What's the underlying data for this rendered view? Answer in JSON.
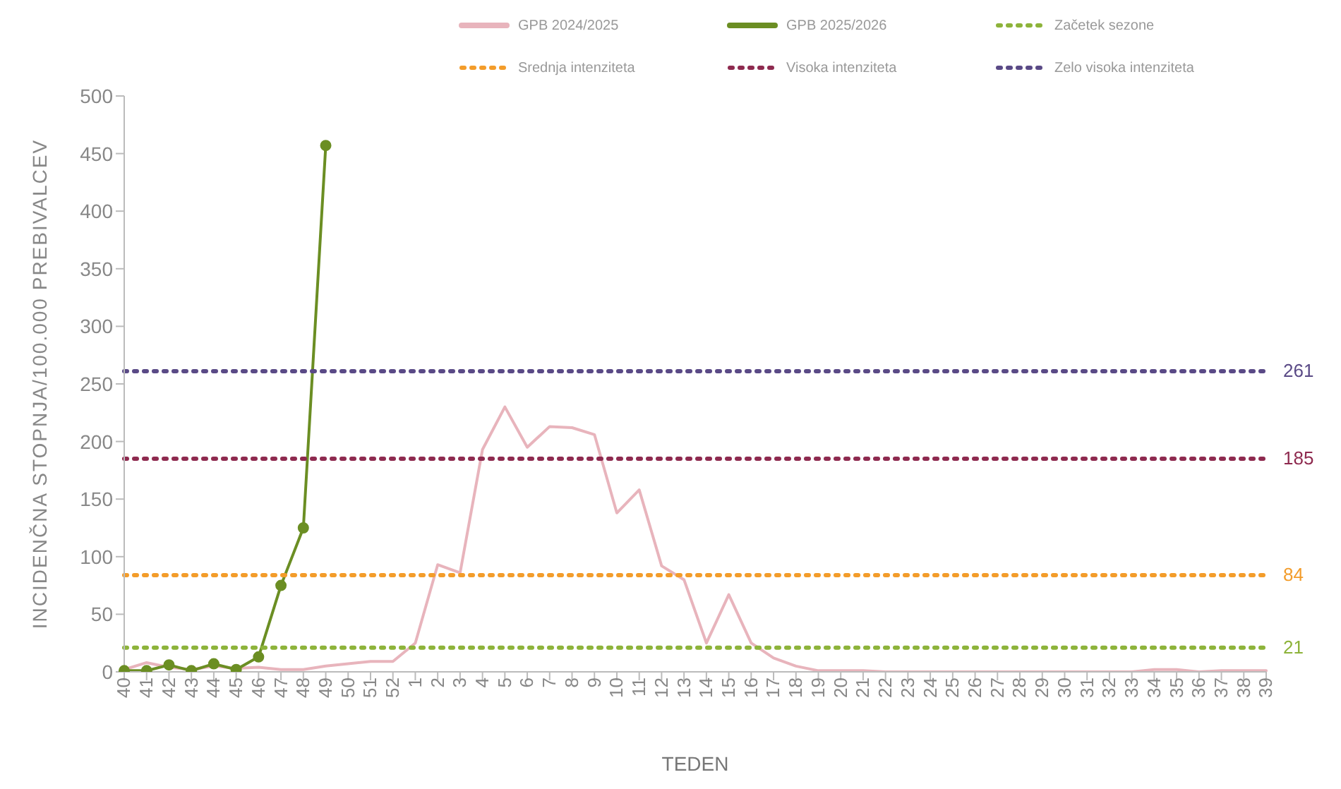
{
  "chart_data": {
    "type": "line",
    "xlabel": "TEDEN",
    "ylabel": "INCIDENČNA STOPNJA/100.000 PREBIVALCEV",
    "categories": [
      "40",
      "41",
      "42",
      "43",
      "44",
      "45",
      "46",
      "47",
      "48",
      "49",
      "50",
      "51",
      "52",
      "1",
      "2",
      "3",
      "4",
      "5",
      "6",
      "7",
      "8",
      "9",
      "10",
      "11",
      "12",
      "13",
      "14",
      "15",
      "16",
      "17",
      "18",
      "19",
      "20",
      "21",
      "22",
      "23",
      "24",
      "25",
      "26",
      "27",
      "28",
      "29",
      "30",
      "31",
      "32",
      "33",
      "34",
      "35",
      "36",
      "37",
      "38",
      "39"
    ],
    "ylim": [
      0,
      500
    ],
    "yticks": [
      0,
      50,
      100,
      150,
      200,
      250,
      300,
      350,
      400,
      450,
      500
    ],
    "grid": false,
    "legend": "top",
    "series": [
      {
        "name": "GPB 2024/2025",
        "color": "#e8b4bc",
        "marker": "none",
        "line_style": "solid",
        "values": [
          2,
          8,
          4,
          2,
          5,
          3,
          4,
          2,
          2,
          5,
          7,
          9,
          9,
          25,
          93,
          86,
          193,
          230,
          195,
          213,
          212,
          206,
          138,
          158,
          92,
          80,
          25,
          67,
          25,
          12,
          5,
          1,
          1,
          1,
          0,
          0,
          0,
          0,
          0,
          0,
          0,
          0,
          0,
          0,
          0,
          0,
          2,
          2,
          0,
          1,
          1,
          1
        ]
      },
      {
        "name": "GPB 2025/2026",
        "color": "#6b8e23",
        "marker": "circle",
        "line_style": "solid",
        "values": [
          1,
          1,
          6,
          1,
          7,
          2,
          13,
          75,
          125,
          457,
          null,
          null,
          null,
          null,
          null,
          null,
          null,
          null,
          null,
          null,
          null,
          null,
          null,
          null,
          null,
          null,
          null,
          null,
          null,
          null,
          null,
          null,
          null,
          null,
          null,
          null,
          null,
          null,
          null,
          null,
          null,
          null,
          null,
          null,
          null,
          null,
          null,
          null,
          null,
          null,
          null,
          null
        ]
      },
      {
        "name": "Začetek sezone",
        "color": "#8db33a",
        "marker": "none",
        "line_style": "dotted",
        "values": [
          21,
          21,
          21,
          21,
          21,
          21,
          21,
          21,
          21,
          21,
          21,
          21,
          21,
          21,
          21,
          21,
          21,
          21,
          21,
          21,
          21,
          21,
          21,
          21,
          21,
          21,
          21,
          21,
          21,
          21,
          21,
          21,
          21,
          21,
          21,
          21,
          21,
          21,
          21,
          21,
          21,
          21,
          21,
          21,
          21,
          21,
          21,
          21,
          21,
          21,
          21,
          21
        ],
        "value_labels": [
          null,
          null,
          null,
          null,
          null,
          null,
          null,
          null,
          null,
          null,
          null,
          null,
          null,
          null,
          null,
          null,
          null,
          null,
          null,
          null,
          null,
          null,
          null,
          null,
          null,
          null,
          null,
          null,
          null,
          null,
          null,
          null,
          null,
          null,
          null,
          null,
          null,
          null,
          null,
          null,
          null,
          null,
          null,
          null,
          null,
          null,
          null,
          null,
          null,
          null,
          null,
          "21"
        ]
      },
      {
        "name": "Srednja intenziteta",
        "color": "#f39c2a",
        "marker": "none",
        "line_style": "dotted",
        "values": [
          84,
          84,
          84,
          84,
          84,
          84,
          84,
          84,
          84,
          84,
          84,
          84,
          84,
          84,
          84,
          84,
          84,
          84,
          84,
          84,
          84,
          84,
          84,
          84,
          84,
          84,
          84,
          84,
          84,
          84,
          84,
          84,
          84,
          84,
          84,
          84,
          84,
          84,
          84,
          84,
          84,
          84,
          84,
          84,
          84,
          84,
          84,
          84,
          84,
          84,
          84,
          84
        ],
        "value_labels": [
          null,
          null,
          null,
          null,
          null,
          null,
          null,
          null,
          null,
          null,
          null,
          null,
          null,
          null,
          null,
          null,
          null,
          null,
          null,
          null,
          null,
          null,
          null,
          null,
          null,
          null,
          null,
          null,
          null,
          null,
          null,
          null,
          null,
          null,
          null,
          null,
          null,
          null,
          null,
          null,
          null,
          null,
          null,
          null,
          null,
          null,
          null,
          null,
          null,
          null,
          null,
          "84"
        ]
      },
      {
        "name": "Visoka intenziteta",
        "color": "#8e2a4f",
        "marker": "none",
        "line_style": "dotted",
        "values": [
          185,
          185,
          185,
          185,
          185,
          185,
          185,
          185,
          185,
          185,
          185,
          185,
          185,
          185,
          185,
          185,
          185,
          185,
          185,
          185,
          185,
          185,
          185,
          185,
          185,
          185,
          185,
          185,
          185,
          185,
          185,
          185,
          185,
          185,
          185,
          185,
          185,
          185,
          185,
          185,
          185,
          185,
          185,
          185,
          185,
          185,
          185,
          185,
          185,
          185,
          185,
          185
        ],
        "value_labels": [
          null,
          null,
          null,
          null,
          null,
          null,
          null,
          null,
          null,
          null,
          null,
          null,
          null,
          null,
          null,
          null,
          null,
          null,
          null,
          null,
          null,
          null,
          null,
          null,
          null,
          null,
          null,
          null,
          null,
          null,
          null,
          null,
          null,
          null,
          null,
          null,
          null,
          null,
          null,
          null,
          null,
          null,
          null,
          null,
          null,
          null,
          null,
          null,
          null,
          null,
          null,
          "185"
        ]
      },
      {
        "name": "Zelo visoka intenziteta",
        "color": "#5a4a86",
        "marker": "none",
        "line_style": "dotted",
        "values": [
          261,
          261,
          261,
          261,
          261,
          261,
          261,
          261,
          261,
          261,
          261,
          261,
          261,
          261,
          261,
          261,
          261,
          261,
          261,
          261,
          261,
          261,
          261,
          261,
          261,
          261,
          261,
          261,
          261,
          261,
          261,
          261,
          261,
          261,
          261,
          261,
          261,
          261,
          261,
          261,
          261,
          261,
          261,
          261,
          261,
          261,
          261,
          261,
          261,
          261,
          261,
          261
        ],
        "value_labels": [
          null,
          null,
          null,
          null,
          null,
          null,
          null,
          null,
          null,
          null,
          null,
          null,
          null,
          null,
          null,
          null,
          null,
          null,
          null,
          null,
          null,
          null,
          null,
          null,
          null,
          null,
          null,
          null,
          null,
          null,
          null,
          null,
          null,
          null,
          null,
          null,
          null,
          null,
          null,
          null,
          null,
          null,
          null,
          null,
          null,
          null,
          null,
          null,
          null,
          null,
          null,
          "261"
        ]
      }
    ]
  }
}
